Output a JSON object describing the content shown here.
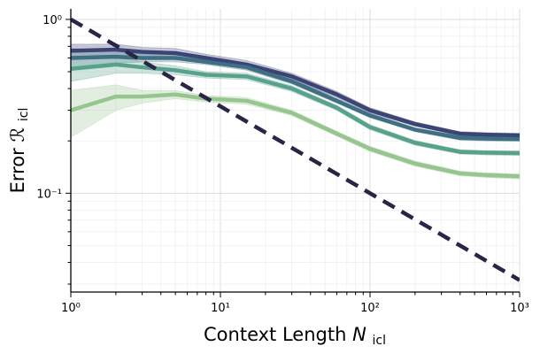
{
  "chart_data": {
    "type": "line",
    "xlabel": "Context Length",
    "xlabel_symbol": "N",
    "xlabel_subscript": "icl",
    "ylabel": "Error",
    "ylabel_symbol": "ℛ",
    "ylabel_subscript": "icl",
    "x_scale": "log",
    "y_scale": "log",
    "xlim": [
      1,
      1000
    ],
    "ylim": [
      0.027,
      1.15
    ],
    "x_ticks": [
      {
        "value": 1,
        "label": "10⁰"
      },
      {
        "value": 10,
        "label": "10¹"
      },
      {
        "value": 100,
        "label": "10²"
      },
      {
        "value": 1000,
        "label": "10³"
      }
    ],
    "y_ticks": [
      {
        "value": 1,
        "label": "10⁰"
      },
      {
        "value": 0.1,
        "label": "10⁻¹"
      }
    ],
    "grid": true,
    "x": [
      1,
      2,
      3,
      5,
      8,
      15,
      30,
      60,
      100,
      200,
      400,
      600,
      1000
    ],
    "series": [
      {
        "color": "#3c4476",
        "values": [
          0.66,
          0.67,
          0.65,
          0.64,
          0.6,
          0.55,
          0.47,
          0.37,
          0.3,
          0.25,
          0.22,
          0.217,
          0.215
        ],
        "lower": [
          0.6,
          0.62,
          0.61,
          0.6,
          0.57,
          0.52,
          0.45,
          0.355,
          0.29,
          0.243,
          0.214,
          0.211,
          0.209
        ],
        "upper": [
          0.72,
          0.72,
          0.69,
          0.68,
          0.63,
          0.58,
          0.49,
          0.385,
          0.31,
          0.257,
          0.226,
          0.223,
          0.221
        ]
      },
      {
        "color": "#3e6f83",
        "values": [
          0.6,
          0.61,
          0.6,
          0.6,
          0.57,
          0.53,
          0.44,
          0.34,
          0.28,
          0.232,
          0.208,
          0.206,
          0.205
        ],
        "lower": [
          0.52,
          0.56,
          0.57,
          0.57,
          0.55,
          0.51,
          0.425,
          0.33,
          0.272,
          0.226,
          0.202,
          0.2,
          0.199
        ],
        "upper": [
          0.68,
          0.66,
          0.63,
          0.63,
          0.59,
          0.55,
          0.455,
          0.35,
          0.288,
          0.238,
          0.214,
          0.212,
          0.211
        ]
      },
      {
        "color": "#58a18c",
        "values": [
          0.52,
          0.55,
          0.53,
          0.51,
          0.48,
          0.47,
          0.4,
          0.31,
          0.24,
          0.195,
          0.173,
          0.171,
          0.17
        ],
        "lower": [
          0.44,
          0.49,
          0.49,
          0.48,
          0.46,
          0.45,
          0.385,
          0.3,
          0.232,
          0.189,
          0.168,
          0.166,
          0.165
        ],
        "upper": [
          0.6,
          0.61,
          0.57,
          0.54,
          0.5,
          0.49,
          0.415,
          0.32,
          0.248,
          0.201,
          0.178,
          0.176,
          0.175
        ]
      },
      {
        "color": "#97c58f",
        "values": [
          0.3,
          0.36,
          0.36,
          0.37,
          0.35,
          0.34,
          0.29,
          0.22,
          0.18,
          0.148,
          0.13,
          0.127,
          0.125
        ],
        "lower": [
          0.21,
          0.3,
          0.33,
          0.35,
          0.335,
          0.325,
          0.28,
          0.213,
          0.174,
          0.143,
          0.126,
          0.123,
          0.121
        ],
        "upper": [
          0.39,
          0.42,
          0.39,
          0.39,
          0.365,
          0.355,
          0.3,
          0.227,
          0.186,
          0.153,
          0.134,
          0.131,
          0.129
        ]
      }
    ],
    "reference_line": {
      "style": "dashed",
      "color": "#2a2446",
      "x": [
        1,
        1000
      ],
      "values": [
        1.0,
        0.0316
      ]
    }
  }
}
